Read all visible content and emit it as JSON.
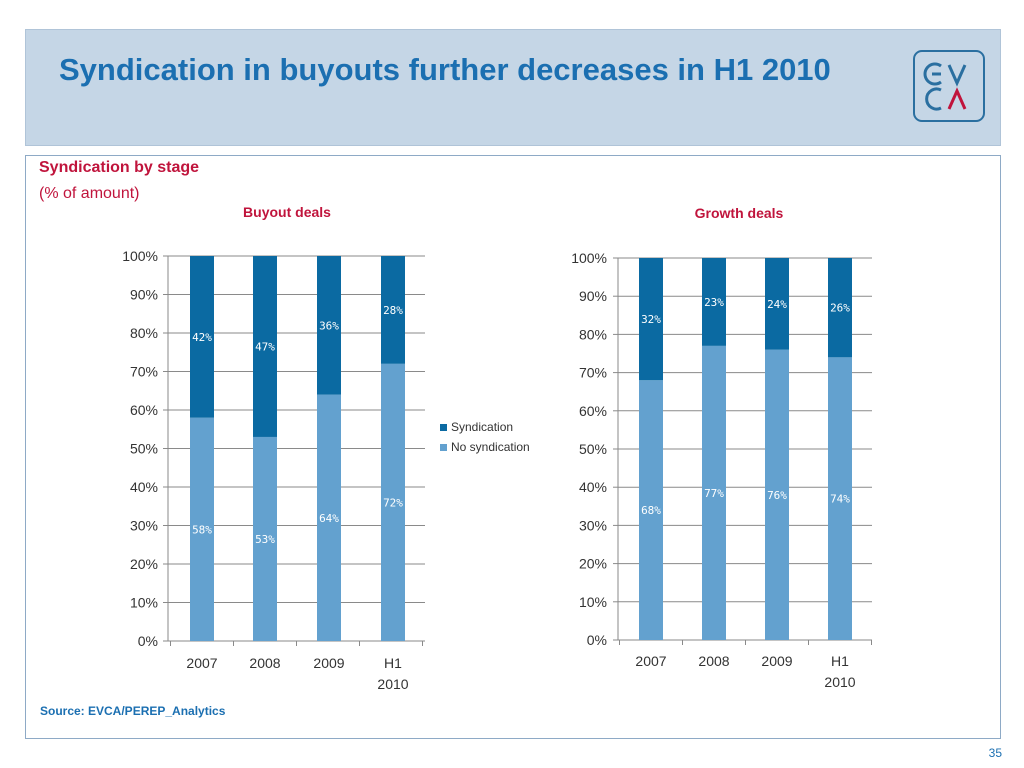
{
  "header": {
    "title": "Syndication in buyouts further decreases in H1 2010",
    "logo_top": "ϵV",
    "logo_bottom": "CΛ"
  },
  "panel": {
    "subtitle": "Syndication by stage",
    "subsubtitle": "(% of amount)",
    "source": "Source: EVCA/PEREP_Analytics"
  },
  "page_number": "35",
  "colors": {
    "syndication": "#0b6aa2",
    "no_syndication": "#63a1cf",
    "title": "#1b6fb1",
    "accent": "#c0143c"
  },
  "chart_data": [
    {
      "type": "bar",
      "stacked": true,
      "title": "Buyout deals",
      "categories": [
        "2007",
        "2008",
        "2009",
        "H1 2010"
      ],
      "series": [
        {
          "name": "No syndication",
          "values": [
            58,
            53,
            64,
            72
          ],
          "labels": [
            "58%",
            "53%",
            "64%",
            "72%"
          ]
        },
        {
          "name": "Syndication",
          "values": [
            42,
            47,
            36,
            28
          ],
          "labels": [
            "42%",
            "47%",
            "36%",
            "28%"
          ]
        }
      ],
      "yticks": [
        "0%",
        "10%",
        "20%",
        "30%",
        "40%",
        "50%",
        "60%",
        "70%",
        "80%",
        "90%",
        "100%"
      ],
      "ylim": [
        0,
        100
      ],
      "legend": [
        "Syndication",
        "No syndication"
      ],
      "legend_position": "right"
    },
    {
      "type": "bar",
      "stacked": true,
      "title": "Growth deals",
      "categories": [
        "2007",
        "2008",
        "2009",
        "H1 2010"
      ],
      "series": [
        {
          "name": "No syndication",
          "values": [
            68,
            77,
            76,
            74
          ],
          "labels": [
            "68%",
            "77%",
            "76%",
            "74%"
          ]
        },
        {
          "name": "Syndication",
          "values": [
            32,
            23,
            24,
            26
          ],
          "labels": [
            "32%",
            "23%",
            "24%",
            "26%"
          ]
        }
      ],
      "yticks": [
        "0%",
        "10%",
        "20%",
        "30%",
        "40%",
        "50%",
        "60%",
        "70%",
        "80%",
        "90%",
        "100%"
      ],
      "ylim": [
        0,
        100
      ]
    }
  ]
}
